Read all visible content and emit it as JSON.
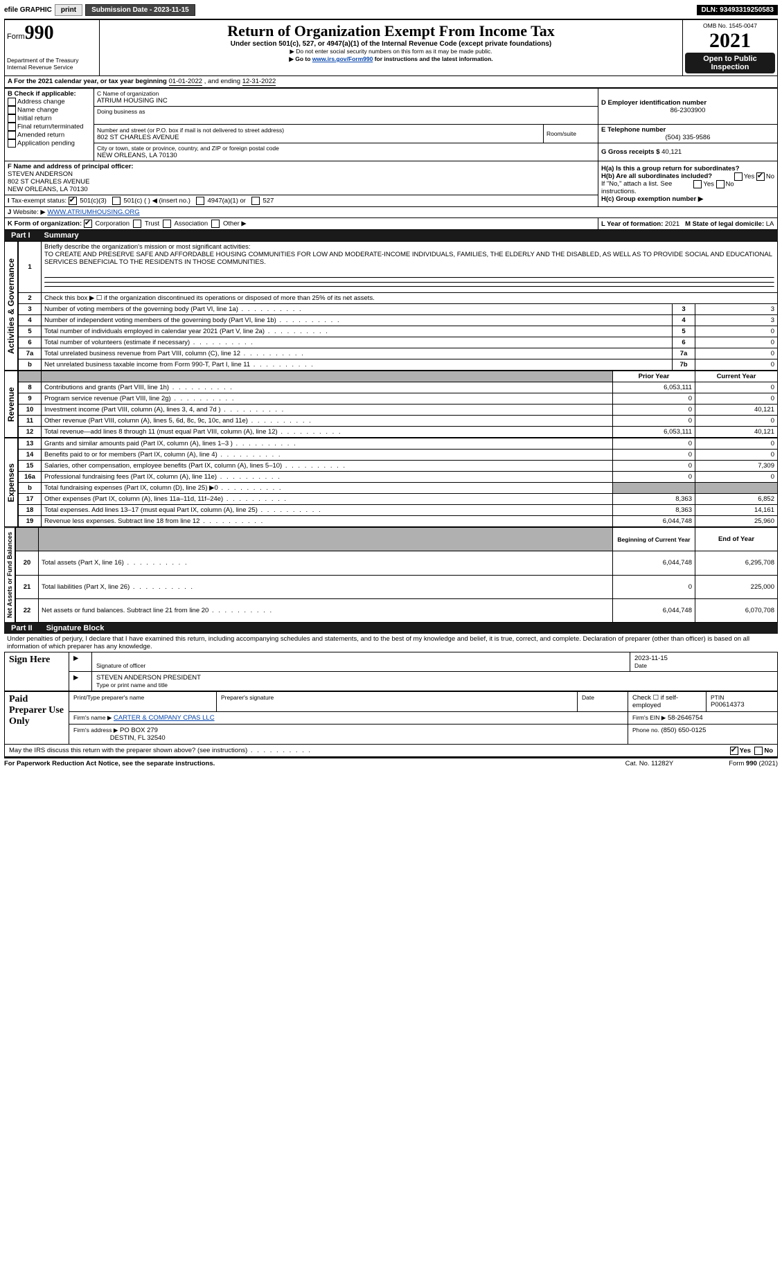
{
  "topbar": {
    "efile": "efile GRAPHIC",
    "print": "print",
    "subdate_label": "Submission Date - 2023-11-15",
    "dln_label": "DLN: 93493319250583"
  },
  "header": {
    "form_prefix": "Form",
    "form_no": "990",
    "dept": "Department of the Treasury\nInternal Revenue Service",
    "title": "Return of Organization Exempt From Income Tax",
    "subtitle": "Under section 501(c), 527, or 4947(a)(1) of the Internal Revenue Code (except private foundations)",
    "note1": "▶ Do not enter social security numbers on this form as it may be made public.",
    "note2_pre": "▶ Go to ",
    "note2_link": "www.irs.gov/Form990",
    "note2_post": " for instructions and the latest information.",
    "omb": "OMB No. 1545-0047",
    "year": "2021",
    "open": "Open to Public Inspection"
  },
  "lineA": {
    "pre": "A For the 2021 calendar year, or tax year beginning ",
    "begin": "01-01-2022",
    "mid": " , and ending ",
    "end": "12-31-2022"
  },
  "boxB": {
    "title": "B Check if applicable:",
    "items": [
      "Address change",
      "Name change",
      "Initial return",
      "Final return/terminated",
      "Amended return",
      "Application pending"
    ]
  },
  "boxC": {
    "label_name": "C Name of organization",
    "name": "ATRIUM HOUSING INC",
    "dba": "Doing business as",
    "street_label": "Number and street (or P.O. box if mail is not delivered to street address)",
    "street": "802 ST CHARLES AVENUE",
    "room": "Room/suite",
    "city_label": "City or town, state or province, country, and ZIP or foreign postal code",
    "city": "NEW ORLEANS, LA  70130"
  },
  "boxD": {
    "label": "D Employer identification number",
    "val": "86-2303900"
  },
  "boxE": {
    "label": "E Telephone number",
    "val": "(504) 335-9586"
  },
  "boxG": {
    "label": "G Gross receipts $",
    "val": "40,121"
  },
  "boxF": {
    "label": "F  Name and address of principal officer:",
    "name": "STEVEN ANDERSON",
    "addr1": "802 ST CHARLES AVENUE",
    "addr2": "NEW ORLEANS, LA  70130"
  },
  "boxH": {
    "a": "H(a)  Is this a group return for subordinates?",
    "b": "H(b)  Are all subordinates included?",
    "b2": "If \"No,\" attach a list. See instructions.",
    "c": "H(c)  Group exemption number ▶",
    "yes": "Yes",
    "no": "No"
  },
  "boxI": {
    "label": "Tax-exempt status:",
    "o1": "501(c)(3)",
    "o2": "501(c) (   ) ◀ (insert no.)",
    "o3": "4947(a)(1) or",
    "o4": "527"
  },
  "boxJ": {
    "label": "Website: ▶",
    "val": "WWW.ATRIUMHOUSING.ORG"
  },
  "boxK": {
    "label": "K Form of organization:",
    "o1": "Corporation",
    "o2": "Trust",
    "o3": "Association",
    "o4": "Other ▶"
  },
  "boxL": {
    "label": "L Year of formation:",
    "val": "2021"
  },
  "boxM": {
    "label": "M State of legal domicile:",
    "val": "LA"
  },
  "part1": {
    "label": "Part I",
    "title": "Summary"
  },
  "tabs": {
    "ag": "Activities & Governance",
    "rev": "Revenue",
    "exp": "Expenses",
    "net": "Net Assets or Fund Balances"
  },
  "summary": {
    "l1": "Briefly describe the organization's mission or most significant activities:",
    "mission": "TO CREATE AND PRESERVE SAFE AND AFFORDABLE HOUSING COMMUNITIES FOR LOW AND MODERATE-INCOME INDIVIDUALS, FAMILIES, THE ELDERLY AND THE DISABLED, AS WELL AS TO PROVIDE SOCIAL AND EDUCATIONAL SERVICES BENEFICIAL TO THE RESIDENTS IN THOSE COMMUNITIES.",
    "l2": "Check this box ▶ ☐  if the organization discontinued its operations or disposed of more than 25% of its net assets.",
    "rows_ag": [
      {
        "n": "3",
        "t": "Number of voting members of the governing body (Part VI, line 1a)",
        "box": "3",
        "v": "3"
      },
      {
        "n": "4",
        "t": "Number of independent voting members of the governing body (Part VI, line 1b)",
        "box": "4",
        "v": "3"
      },
      {
        "n": "5",
        "t": "Total number of individuals employed in calendar year 2021 (Part V, line 2a)",
        "box": "5",
        "v": "0"
      },
      {
        "n": "6",
        "t": "Total number of volunteers (estimate if necessary)",
        "box": "6",
        "v": "0"
      },
      {
        "n": "7a",
        "t": "Total unrelated business revenue from Part VIII, column (C), line 12",
        "box": "7a",
        "v": "0"
      },
      {
        "n": "b",
        "t": "Net unrelated business taxable income from Form 990-T, Part I, line 11",
        "box": "7b",
        "v": "0"
      }
    ],
    "col_prior": "Prior Year",
    "col_current": "Current Year",
    "rows_rev": [
      {
        "n": "8",
        "t": "Contributions and grants (Part VIII, line 1h)",
        "p": "6,053,111",
        "c": "0"
      },
      {
        "n": "9",
        "t": "Program service revenue (Part VIII, line 2g)",
        "p": "0",
        "c": "0"
      },
      {
        "n": "10",
        "t": "Investment income (Part VIII, column (A), lines 3, 4, and 7d )",
        "p": "0",
        "c": "40,121"
      },
      {
        "n": "11",
        "t": "Other revenue (Part VIII, column (A), lines 5, 6d, 8c, 9c, 10c, and 11e)",
        "p": "0",
        "c": "0"
      },
      {
        "n": "12",
        "t": "Total revenue—add lines 8 through 11 (must equal Part VIII, column (A), line 12)",
        "p": "6,053,111",
        "c": "40,121"
      }
    ],
    "rows_exp": [
      {
        "n": "13",
        "t": "Grants and similar amounts paid (Part IX, column (A), lines 1–3 )",
        "p": "0",
        "c": "0"
      },
      {
        "n": "14",
        "t": "Benefits paid to or for members (Part IX, column (A), line 4)",
        "p": "0",
        "c": "0"
      },
      {
        "n": "15",
        "t": "Salaries, other compensation, employee benefits (Part IX, column (A), lines 5–10)",
        "p": "0",
        "c": "7,309"
      },
      {
        "n": "16a",
        "t": "Professional fundraising fees (Part IX, column (A), line 11e)",
        "p": "0",
        "c": "0"
      },
      {
        "n": "b",
        "t": "Total fundraising expenses (Part IX, column (D), line 25) ▶0",
        "p": "",
        "c": "",
        "shaded": true
      },
      {
        "n": "17",
        "t": "Other expenses (Part IX, column (A), lines 11a–11d, 11f–24e)",
        "p": "8,363",
        "c": "6,852"
      },
      {
        "n": "18",
        "t": "Total expenses. Add lines 13–17 (must equal Part IX, column (A), line 25)",
        "p": "8,363",
        "c": "14,161"
      },
      {
        "n": "19",
        "t": "Revenue less expenses. Subtract line 18 from line 12",
        "p": "6,044,748",
        "c": "25,960"
      }
    ],
    "col_begin": "Beginning of Current Year",
    "col_end": "End of Year",
    "rows_net": [
      {
        "n": "20",
        "t": "Total assets (Part X, line 16)",
        "p": "6,044,748",
        "c": "6,295,708"
      },
      {
        "n": "21",
        "t": "Total liabilities (Part X, line 26)",
        "p": "0",
        "c": "225,000"
      },
      {
        "n": "22",
        "t": "Net assets or fund balances. Subtract line 21 from line 20",
        "p": "6,044,748",
        "c": "6,070,708"
      }
    ]
  },
  "part2": {
    "label": "Part II",
    "title": "Signature Block",
    "decl": "Under penalties of perjury, I declare that I have examined this return, including accompanying schedules and statements, and to the best of my knowledge and belief, it is true, correct, and complete. Declaration of preparer (other than officer) is based on all information of which preparer has any knowledge."
  },
  "sign": {
    "side": "Sign Here",
    "sig_officer": "Signature of officer",
    "date": "Date",
    "date_val": "2023-11-15",
    "name": "STEVEN ANDERSON  PRESIDENT",
    "name_label": "Type or print name and title"
  },
  "prep": {
    "side": "Paid Preparer Use Only",
    "h1": "Print/Type preparer's name",
    "h2": "Preparer's signature",
    "h3": "Date",
    "h4_pre": "Check ☐ if self-employed",
    "h5": "PTIN",
    "ptin": "P00614373",
    "firm_name_l": "Firm's name    ▶",
    "firm_name": "CARTER & COMPANY CPAS LLC",
    "firm_ein_l": "Firm's EIN ▶",
    "firm_ein": "58-2646754",
    "firm_addr_l": "Firm's address ▶",
    "firm_addr1": "PO BOX 279",
    "firm_addr2": "DESTIN, FL  32540",
    "phone_l": "Phone no.",
    "phone": "(850) 650-0125"
  },
  "footer": {
    "discuss": "May the IRS discuss this return with the preparer shown above? (see instructions)",
    "yes": "Yes",
    "no": "No",
    "pra": "For Paperwork Reduction Act Notice, see the separate instructions.",
    "cat": "Cat. No. 11282Y",
    "form": "Form 990 (2021)"
  }
}
